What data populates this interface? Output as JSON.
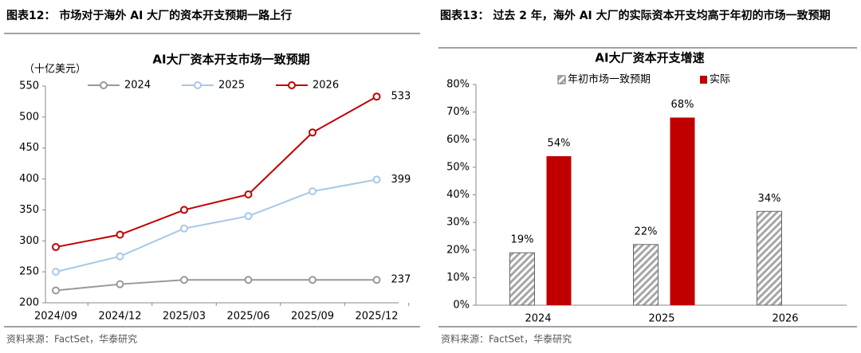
{
  "charts_page": [
    {
      "header": "图表12：  市场对于海外 AI 大厂的资本开支预期一路上行",
      "source": "资料来源：FactSet，华泰研究",
      "chart_data": {
        "type": "line",
        "title": "AI大厂资本开支市场一致预期",
        "y_label": "（十亿美元）",
        "categories": [
          "2024/09",
          "2024/12",
          "2025/03",
          "2025/06",
          "2025/09",
          "2025/12"
        ],
        "series": [
          {
            "name": "2024",
            "color": "#999999",
            "values": [
              220,
              230,
              237,
              237,
              237,
              237
            ]
          },
          {
            "name": "2025",
            "color": "#a6c8e6",
            "values": [
              250,
              275,
              320,
              340,
              380,
              399
            ]
          },
          {
            "name": "2026",
            "color": "#c00000",
            "values": [
              290,
              310,
              350,
              375,
              475,
              533
            ]
          }
        ],
        "ylim": [
          200,
          550
        ],
        "yticks": [
          200,
          250,
          300,
          350,
          400,
          450,
          500,
          550
        ],
        "end_labels": true
      }
    },
    {
      "header": "图表13：  过去 2 年，海外 AI 大厂的实际资本开支均高于年初的市场一致预期",
      "source": "资料来源：FactSet，华泰研究",
      "chart_data": {
        "type": "bar",
        "title": "AI大厂资本开支增速",
        "categories": [
          "2024",
          "2025",
          "2026"
        ],
        "series": [
          {
            "name": "年初市场一致预期",
            "color": "#a6a6a6",
            "pattern": "hatch",
            "values": [
              19,
              22,
              34
            ],
            "value_labels": [
              "19%",
              "22%",
              "34%"
            ]
          },
          {
            "name": "实际",
            "color": "#c00000",
            "values": [
              54,
              68,
              null
            ],
            "value_labels": [
              "54%",
              "68%",
              null
            ]
          }
        ],
        "ylim": [
          0,
          80
        ],
        "yticks": [
          {
            "value": 0,
            "label": "0%"
          },
          {
            "value": 10,
            "label": "10%"
          },
          {
            "value": 20,
            "label": "20%"
          },
          {
            "value": 30,
            "label": "30%"
          },
          {
            "value": 40,
            "label": "40%"
          },
          {
            "value": 50,
            "label": "50%"
          },
          {
            "value": 60,
            "label": "60%"
          },
          {
            "value": 70,
            "label": "70%"
          },
          {
            "value": 80,
            "label": "80%"
          }
        ]
      }
    }
  ]
}
